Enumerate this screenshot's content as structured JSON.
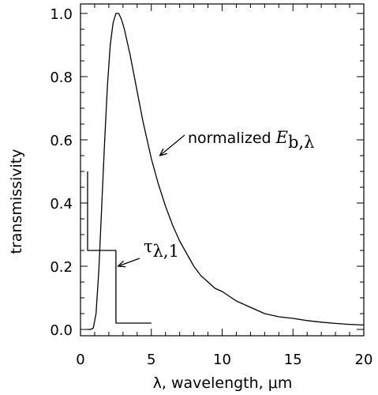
{
  "chart_data": {
    "type": "line",
    "title": "",
    "xlabel": "λ, wavelength, μm",
    "ylabel": "transmissivity",
    "xlim": [
      0,
      20
    ],
    "ylim": [
      -0.02,
      1.03
    ],
    "x_ticks": [
      0,
      5,
      10,
      15,
      20
    ],
    "x_tick_labels": [
      "0",
      "5",
      "10",
      "15",
      "20"
    ],
    "y_ticks": [
      0.0,
      0.2,
      0.4,
      0.6,
      0.8,
      1.0
    ],
    "y_tick_labels": [
      "0.0",
      "0.2",
      "0.4",
      "0.6",
      "0.8",
      "1.0"
    ],
    "grid": false,
    "series": [
      {
        "x": [
          0.5,
          0.7,
          0.9,
          1.1,
          1.3,
          1.5,
          1.7,
          1.9,
          2.1,
          2.3,
          2.5,
          2.7,
          2.9,
          3.1,
          3.3,
          3.5,
          3.8,
          4.1,
          4.4,
          4.7,
          5.0,
          5.5,
          6.0,
          6.5,
          7.0,
          7.5,
          8.0,
          8.5,
          9.0,
          9.5,
          10.0,
          11.0,
          12.0,
          13.0,
          14.0,
          15.0,
          16.0,
          17.0,
          18.0,
          19.0,
          20.0
        ],
        "y": [
          0.0,
          0.0,
          0.004,
          0.05,
          0.19,
          0.39,
          0.59,
          0.77,
          0.9,
          0.97,
          1.0,
          1.0,
          0.98,
          0.95,
          0.91,
          0.87,
          0.8,
          0.73,
          0.66,
          0.6,
          0.54,
          0.46,
          0.39,
          0.33,
          0.28,
          0.24,
          0.2,
          0.17,
          0.15,
          0.13,
          0.12,
          0.09,
          0.07,
          0.05,
          0.04,
          0.035,
          0.028,
          0.023,
          0.019,
          0.016,
          0.014
        ]
      },
      {
        "x": [
          0.5,
          0.5,
          1.0,
          2.5,
          2.5,
          5.0
        ],
        "y": [
          0.5,
          0.25,
          0.25,
          0.25,
          0.02,
          0.02
        ]
      }
    ],
    "annotations": [
      {
        "text": "normalized ",
        "symbol": "E",
        "subscript": "b,λ",
        "arrow_to": [
          5.6,
          0.55
        ]
      },
      {
        "symbol": "τ",
        "subscript": "λ,1",
        "arrow_to": [
          2.65,
          0.2
        ]
      }
    ]
  }
}
